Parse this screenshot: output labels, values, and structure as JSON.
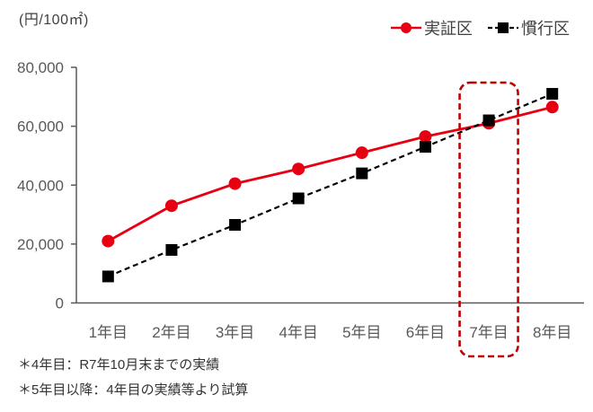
{
  "unit_label": "(円/100㎡)",
  "footnotes": [
    "＊4年目：R7年10月末までの実績",
    "＊5年目以降：4年目の実績等より試算"
  ],
  "chart_data": {
    "type": "line",
    "title": "",
    "ylabel": "(円/100㎡)",
    "xlabel": "",
    "categories": [
      "1年目",
      "2年目",
      "3年目",
      "4年目",
      "5年目",
      "6年目",
      "7年目",
      "8年目"
    ],
    "series": [
      {
        "name": "実証区",
        "color": "#e60012",
        "marker": "circle",
        "line_style": "solid",
        "values": [
          21000,
          33000,
          40500,
          45500,
          51000,
          56500,
          61000,
          66500
        ]
      },
      {
        "name": "慣行区",
        "color": "#000000",
        "marker": "square",
        "line_style": "dashed",
        "values": [
          9000,
          18000,
          26500,
          35500,
          44000,
          53000,
          62000,
          71000
        ]
      }
    ],
    "ylim": [
      0,
      80000
    ],
    "ytick_interval": 20000,
    "ytick_labels": [
      "0",
      "20,000",
      "40,000",
      "60,000",
      "80,000"
    ],
    "grid": false,
    "legend_position": "top-right",
    "axis_color": "#595959",
    "tick_label_color": "#595959",
    "highlight": {
      "category": "7年目",
      "color": "#c00000",
      "style": "dashed-rounded-rectangle"
    }
  }
}
